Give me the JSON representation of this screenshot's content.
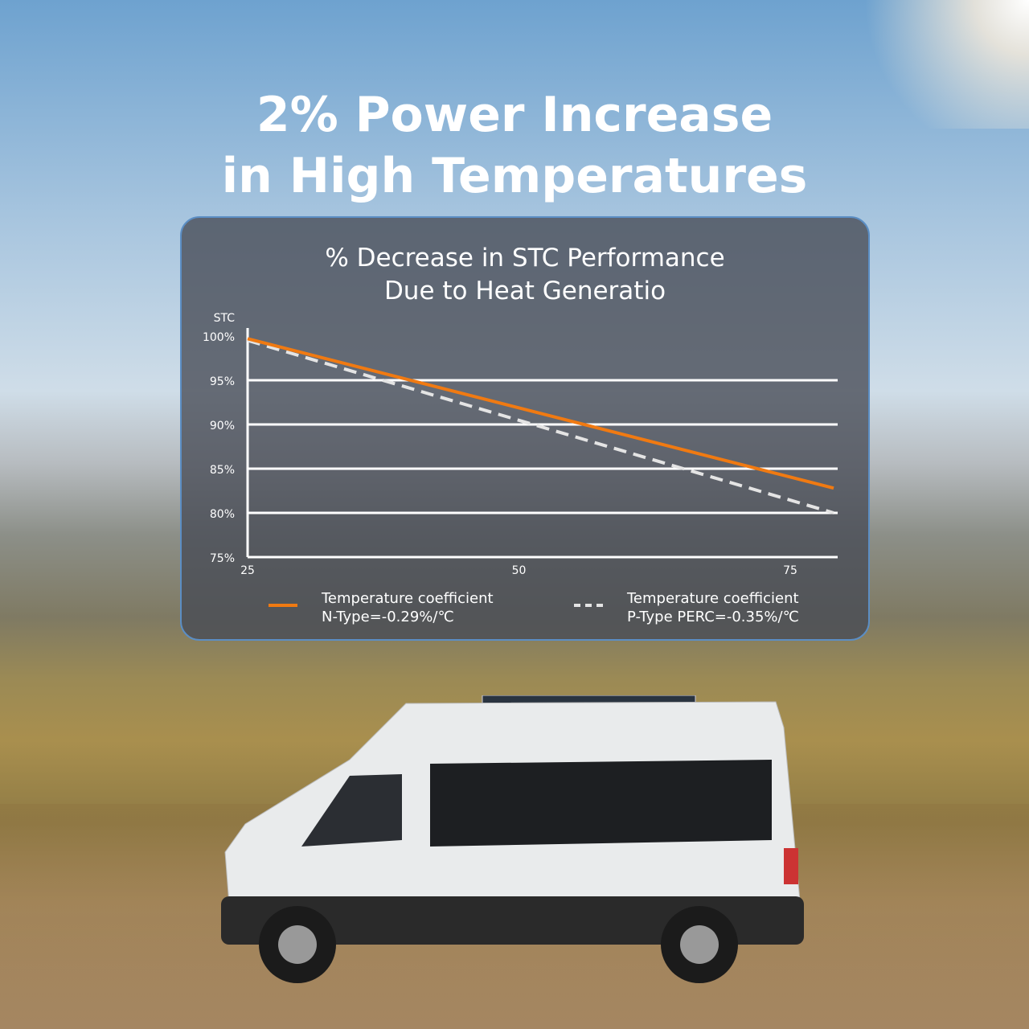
{
  "headline": {
    "line1": "2% Power Increase",
    "line2": "in High Temperatures"
  },
  "chart_data": {
    "type": "line",
    "title_line1": "% Decrease in STC Performance",
    "title_line2": "Due to Heat Generatio",
    "ylabel": "STC",
    "xlim": [
      25,
      79
    ],
    "ylim": [
      75,
      100
    ],
    "xticks": [
      25,
      50,
      75
    ],
    "yticks": [
      100,
      95,
      90,
      85,
      80,
      75
    ],
    "ytick_labels": [
      "100%",
      "95%",
      "90%",
      "85%",
      "80%",
      "75%"
    ],
    "grid": true,
    "series": [
      {
        "name": "Temperature coefficient N-Type=-0.29%/℃",
        "legend_line1": "Temperature coefficient",
        "legend_line2": "N-Type=-0.29%/℃",
        "style": "solid",
        "color": "#f07a12",
        "points": [
          [
            25,
            99.7
          ],
          [
            79,
            82.8
          ]
        ]
      },
      {
        "name": "Temperature coefficient P-Type PERC=-0.35%/℃",
        "legend_line1": "Temperature coefficient",
        "legend_line2": "P-Type PERC=-0.35%/℃",
        "style": "dashed",
        "color": "#e4e4e4",
        "points": [
          [
            25,
            99.5
          ],
          [
            79,
            80
          ]
        ]
      }
    ],
    "legend_position": "bottom"
  },
  "colors": {
    "accent": "#f07a12",
    "panel_border": "#5b8ec4"
  }
}
